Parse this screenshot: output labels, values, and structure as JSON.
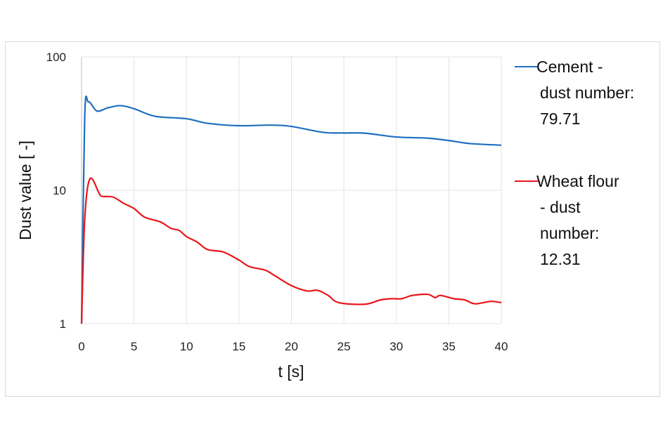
{
  "chart_data": {
    "type": "line",
    "xlabel": "t [s]",
    "ylabel": "Dust value [ -]",
    "xlim": [
      0,
      40
    ],
    "ylim": [
      1,
      100
    ],
    "yscale": "log",
    "xticks": [
      "0",
      "5",
      "10",
      "15",
      "20",
      "25",
      "30",
      "35",
      "40"
    ],
    "yticks": [
      "1",
      "10",
      "100"
    ],
    "grid": true,
    "legend_position": "right",
    "series": [
      {
        "name": " Cement - dust number: 79.71",
        "legend_lines": [
          " Cement -",
          "dust number:",
          "79.71"
        ],
        "color": "#1f6fbf",
        "x": [
          0,
          0.3,
          0.66,
          1.46,
          2.5,
          3.7,
          5,
          7,
          10,
          12,
          15,
          18,
          20,
          23,
          25,
          27,
          30,
          33,
          35,
          37,
          40
        ],
        "y": [
          1,
          35,
          46,
          39.3,
          41.5,
          43.1,
          40.9,
          35.9,
          34.4,
          31.8,
          30.5,
          30.8,
          30.1,
          27.2,
          26.9,
          26.8,
          25.1,
          24.6,
          23.6,
          22.4,
          21.8
        ]
      },
      {
        "name": " Wheat flour - dust number: 12.31",
        "legend_lines": [
          " Wheat flour",
          "- dust",
          "number:",
          "12.31"
        ],
        "color": "#e8161b",
        "x": [
          0,
          0.3,
          0.8,
          1.7,
          2,
          3,
          4,
          5,
          6,
          7.5,
          8.5,
          9.3,
          10,
          11,
          12,
          13.5,
          15,
          16,
          17.5,
          18.5,
          20,
          21.5,
          22.5,
          23.5,
          24.5,
          27,
          28.5,
          29.5,
          30.5,
          31.5,
          33,
          33.7,
          34.2,
          35.5,
          36.5,
          37.5,
          39,
          40
        ],
        "y": [
          1,
          6,
          12.2,
          9.4,
          9.0,
          8.9,
          8.0,
          7.3,
          6.3,
          5.8,
          5.2,
          5.0,
          4.5,
          4.1,
          3.6,
          3.45,
          3.0,
          2.68,
          2.52,
          2.27,
          1.93,
          1.76,
          1.78,
          1.63,
          1.44,
          1.4,
          1.51,
          1.54,
          1.54,
          1.63,
          1.66,
          1.57,
          1.63,
          1.54,
          1.51,
          1.41,
          1.47,
          1.44
        ]
      }
    ]
  }
}
